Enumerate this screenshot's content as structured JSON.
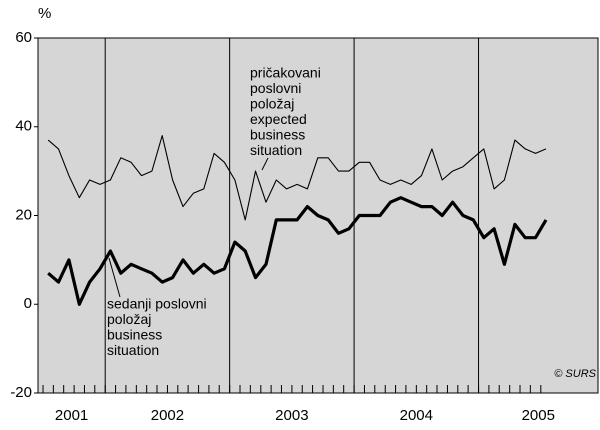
{
  "chart_data": {
    "type": "line",
    "y_unit": "%",
    "x": [
      2001.542,
      2001.625,
      2001.708,
      2001.792,
      2001.875,
      2001.958,
      2002.042,
      2002.125,
      2002.208,
      2002.292,
      2002.375,
      2002.458,
      2002.542,
      2002.625,
      2002.708,
      2002.792,
      2002.875,
      2002.958,
      2003.042,
      2003.125,
      2003.208,
      2003.292,
      2003.375,
      2003.458,
      2003.542,
      2003.625,
      2003.708,
      2003.792,
      2003.875,
      2003.958,
      2004.042,
      2004.125,
      2004.208,
      2004.292,
      2004.375,
      2004.458,
      2004.542,
      2004.625,
      2004.708,
      2004.792,
      2004.875,
      2004.958,
      2005.042,
      2005.125,
      2005.208,
      2005.292,
      2005.375,
      2005.458,
      2005.542
    ],
    "xlim": [
      2001.46,
      2005.96
    ],
    "xticks": [
      2002,
      2003,
      2004,
      2005
    ],
    "year_labels": [
      2001,
      2002,
      2003,
      2004,
      2005
    ],
    "ylim": [
      -20,
      60
    ],
    "yticks": [
      60,
      40,
      20,
      0,
      -20
    ],
    "series": [
      {
        "color": "#000000",
        "width": 1.1,
        "values": [
          37,
          35,
          29,
          24,
          28,
          27,
          28,
          33,
          32,
          29,
          30,
          38,
          28,
          22,
          25,
          26,
          34,
          32,
          28,
          19,
          30,
          23,
          28,
          26,
          27,
          26,
          33,
          33,
          30,
          30,
          32,
          32,
          28,
          27,
          28,
          27,
          29,
          35,
          28,
          30,
          31,
          33,
          35,
          26,
          28,
          37,
          35,
          34,
          35
        ]
      },
      {
        "color": "#000000",
        "width": 3.2,
        "values": [
          7,
          5,
          10,
          0,
          5,
          8,
          12,
          7,
          9,
          8,
          7,
          5,
          6,
          10,
          7,
          9,
          7,
          8,
          14,
          12,
          6,
          9,
          19,
          19,
          19,
          22,
          20,
          19,
          16,
          17,
          20,
          20,
          20,
          23,
          24,
          23,
          22,
          22,
          20,
          23,
          20,
          19,
          15,
          17,
          9,
          18,
          15,
          15,
          19
        ]
      }
    ],
    "annotations": [
      {
        "lines": [
          "pričakovani",
          "poslovni",
          "položaj",
          "expected",
          "business",
          "situation"
        ]
      },
      {
        "lines": [
          "sedanji poslovni",
          "položaj",
          "business",
          "situation"
        ]
      }
    ],
    "credit": "© SURS",
    "background": "#d6d6d6"
  }
}
